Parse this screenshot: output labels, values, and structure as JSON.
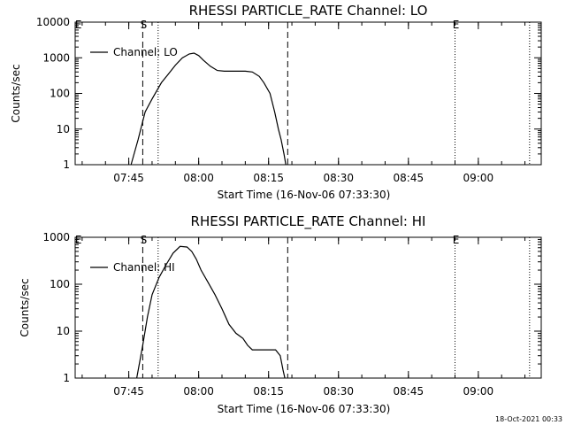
{
  "chart_data": [
    {
      "type": "line",
      "title": "RHESSI PARTICLE_RATE Channel: LO",
      "xlabel": "Start Time (16-Nov-06 07:33:30)",
      "ylabel": "Counts/sec",
      "yscale": "log",
      "ylim": [
        1,
        10000
      ],
      "y_ticks": [
        1,
        10,
        100,
        1000,
        10000
      ],
      "y_tick_labels": [
        "1",
        "10",
        "100",
        "1000",
        "10000"
      ],
      "xlim_minutes": [
        0,
        100
      ],
      "x_ticks_minutes": [
        11.5,
        26.5,
        41.5,
        56.5,
        71.5,
        86.5
      ],
      "x_tick_labels": [
        "07:45",
        "08:00",
        "08:15",
        "08:30",
        "08:45",
        "09:00"
      ],
      "legend": "Channel: LO",
      "markers": [
        {
          "label": "E",
          "minute": 0.5,
          "style": "none"
        },
        {
          "label": "S",
          "minute": 14.5,
          "style": "dashed"
        },
        {
          "label": "",
          "minute": 17.8,
          "style": "dotted"
        },
        {
          "label": "",
          "minute": 45.6,
          "style": "dashed"
        },
        {
          "label": "E",
          "minute": 81.5,
          "style": "dotted"
        },
        {
          "label": "",
          "minute": 97.5,
          "style": "dotted"
        }
      ],
      "series": [
        {
          "name": "Channel: LO",
          "x": [
            12.0,
            13.5,
            15.0,
            16.5,
            18.5,
            20.0,
            21.5,
            23.0,
            24.5,
            25.5,
            26.5,
            27.5,
            29.0,
            30.5,
            32.0,
            33.5,
            35.0,
            36.5,
            38.0,
            39.5,
            40.5,
            41.8,
            42.8,
            43.6,
            44.2,
            44.8,
            45.2
          ],
          "y": [
            1,
            5,
            30,
            70,
            200,
            350,
            620,
            1000,
            1280,
            1350,
            1150,
            860,
            580,
            440,
            420,
            420,
            420,
            420,
            400,
            300,
            200,
            100,
            30,
            10,
            5,
            2,
            1
          ]
        }
      ]
    },
    {
      "type": "line",
      "title": "RHESSI PARTICLE_RATE Channel: HI",
      "xlabel": "Start Time (16-Nov-06 07:33:30)",
      "ylabel": "Counts/sec",
      "yscale": "log",
      "ylim": [
        1,
        1000
      ],
      "y_ticks": [
        1,
        10,
        100,
        1000
      ],
      "y_tick_labels": [
        "1",
        "10",
        "100",
        "1000"
      ],
      "xlim_minutes": [
        0,
        100
      ],
      "x_ticks_minutes": [
        11.5,
        26.5,
        41.5,
        56.5,
        71.5,
        86.5
      ],
      "x_tick_labels": [
        "07:45",
        "08:00",
        "08:15",
        "08:30",
        "08:45",
        "09:00"
      ],
      "legend": "Channel: HI",
      "markers": [
        {
          "label": "E",
          "minute": 0.5,
          "style": "none"
        },
        {
          "label": "S",
          "minute": 14.5,
          "style": "dashed"
        },
        {
          "label": "",
          "minute": 17.8,
          "style": "dotted"
        },
        {
          "label": "",
          "minute": 45.6,
          "style": "dashed"
        },
        {
          "label": "E",
          "minute": 81.5,
          "style": "dotted"
        },
        {
          "label": "",
          "minute": 97.5,
          "style": "dotted"
        }
      ],
      "series": [
        {
          "name": "Channel: HI",
          "x": [
            13.2,
            14.5,
            15.5,
            16.5,
            18.0,
            19.5,
            21.0,
            22.5,
            24.0,
            25.0,
            26.0,
            27.0,
            28.5,
            30.0,
            31.5,
            33.0,
            34.5,
            36.0,
            37.0,
            38.0,
            39.0,
            40.0,
            41.0,
            42.0,
            43.0,
            44.0,
            44.6,
            45.0
          ],
          "y": [
            1,
            5,
            20,
            60,
            140,
            260,
            460,
            640,
            620,
            500,
            340,
            200,
            110,
            60,
            30,
            14,
            9,
            7,
            5,
            4,
            4,
            4,
            4,
            4,
            4,
            3,
            1.5,
            1
          ]
        }
      ]
    }
  ],
  "footer": {
    "timestamp": "18-Oct-2021 00:33"
  }
}
